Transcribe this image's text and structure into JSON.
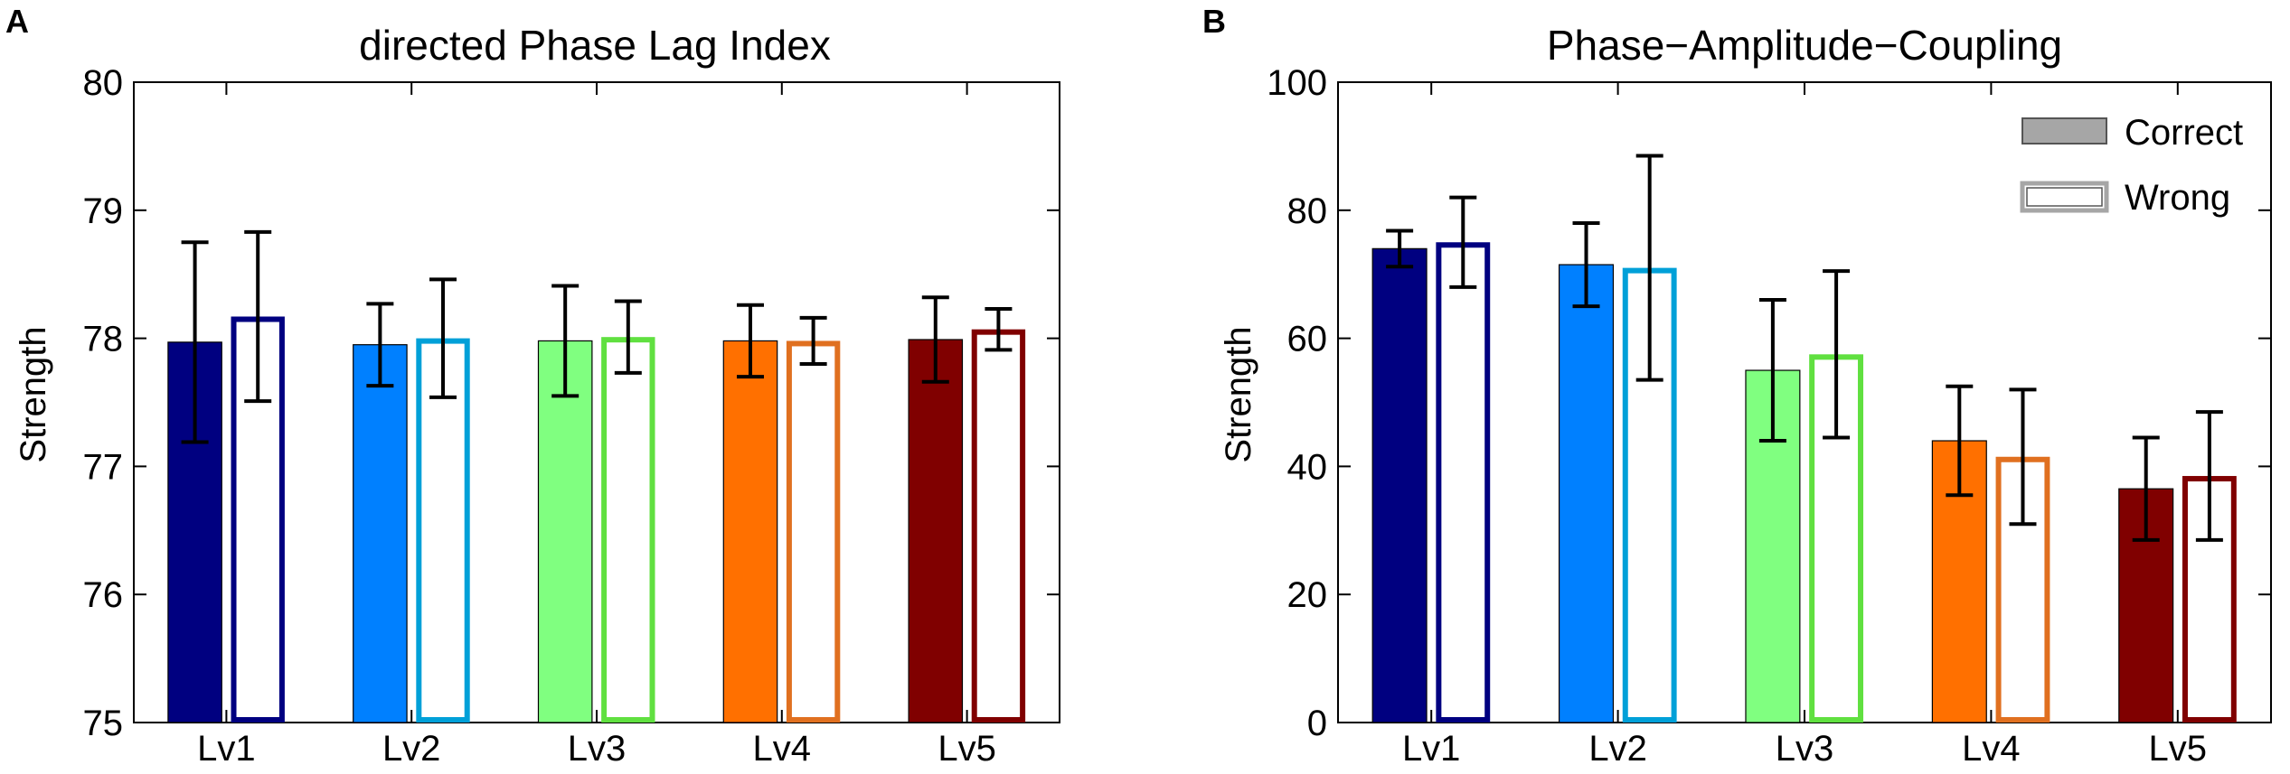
{
  "chart_data": [
    {
      "panel": "A",
      "type": "bar",
      "title": "directed Phase Lag Index",
      "xlabel": "",
      "ylabel": "Strength",
      "ylim": [
        75,
        80
      ],
      "yticks": [
        "75",
        "76",
        "77",
        "78",
        "79",
        "80"
      ],
      "categories": [
        "Lv1",
        "Lv2",
        "Lv3",
        "Lv4",
        "Lv5"
      ],
      "colors": [
        "#000080",
        "#0080ff",
        "#80ff80",
        "#ff7000",
        "#800000"
      ],
      "edge_colors": [
        "#000080",
        "#00a0d8",
        "#60e040",
        "#e07020",
        "#800000"
      ],
      "series": [
        {
          "name": "Correct",
          "style": "filled",
          "values": [
            77.97,
            77.95,
            77.98,
            77.98,
            77.99
          ],
          "errors": [
            0.78,
            0.32,
            0.43,
            0.28,
            0.33
          ]
        },
        {
          "name": "Wrong",
          "style": "outline",
          "values": [
            78.17,
            78.0,
            78.01,
            77.98,
            78.07
          ],
          "errors": [
            0.66,
            0.46,
            0.28,
            0.18,
            0.16
          ]
        }
      ]
    },
    {
      "panel": "B",
      "type": "bar",
      "title": "Phase−Amplitude−Coupling",
      "xlabel": "",
      "ylabel": "Strength",
      "ylim": [
        0,
        100
      ],
      "yticks": [
        "0",
        "20",
        "40",
        "60",
        "80",
        "100"
      ],
      "categories": [
        "Lv1",
        "Lv2",
        "Lv3",
        "Lv4",
        "Lv5"
      ],
      "colors": [
        "#000080",
        "#0080ff",
        "#80ff80",
        "#ff7000",
        "#800000"
      ],
      "edge_colors": [
        "#000080",
        "#00a0d8",
        "#60e040",
        "#e07020",
        "#800000"
      ],
      "legend": {
        "placement": "top-right",
        "entries": [
          "Correct",
          "Wrong"
        ],
        "colors": [
          "#999999",
          "#999999"
        ]
      },
      "series": [
        {
          "name": "Correct",
          "style": "filled",
          "values": [
            74,
            71.5,
            55,
            44,
            36.5
          ],
          "errors": [
            2.8,
            6.5,
            11,
            8.5,
            8
          ]
        },
        {
          "name": "Wrong",
          "style": "outline",
          "values": [
            75,
            71,
            57.5,
            41.5,
            38.5
          ],
          "errors": [
            7,
            17.5,
            13,
            10.5,
            10
          ]
        }
      ]
    }
  ]
}
